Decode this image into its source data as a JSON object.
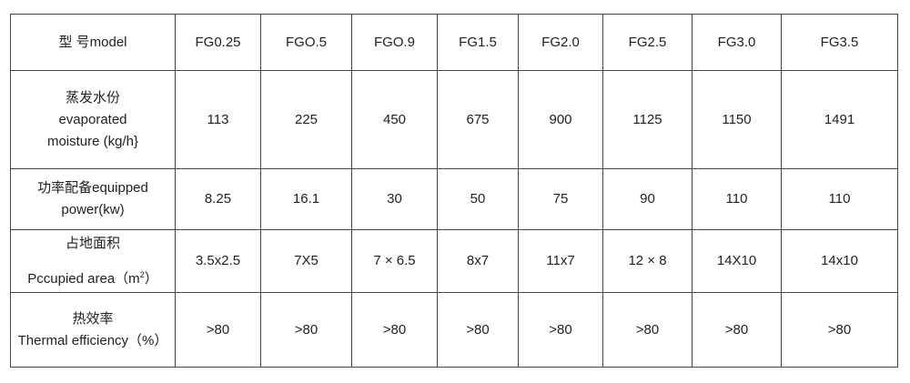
{
  "table": {
    "header": {
      "label": "型  号model",
      "models": [
        "FG0.25",
        "FGO.5",
        "FGO.9",
        "FG1.5",
        "FG2.0",
        "FG2.5",
        "FG3.0",
        "FG3.5"
      ]
    },
    "rows": [
      {
        "label_cn": "蒸发水份",
        "label_en": "evaporated",
        "label_en2": "moisture (kg/h}",
        "values": [
          "113",
          "225",
          "450",
          "675",
          "900",
          "1125",
          "1150",
          "1491"
        ]
      },
      {
        "label_cn": "功率配备equipped",
        "label_en": "power(kw)",
        "values": [
          "8.25",
          "16.1",
          "30",
          "50",
          "75",
          "90",
          "110",
          "110"
        ]
      },
      {
        "label_cn": "占地面积",
        "label_en": "Pccupied area（m",
        "label_sup": "2",
        "label_end": "）",
        "values": [
          "3.5x2.5",
          "7X5",
          "7 × 6.5",
          "8x7",
          "11x7",
          "12 × 8",
          "14X10",
          "14x10"
        ]
      },
      {
        "label_cn": "热效率",
        "label_en": "Thermal efficiency（%）",
        "values": [
          ">80",
          ">80",
          ">80",
          ">80",
          ">80",
          ">80",
          ">80",
          ">80"
        ]
      }
    ]
  }
}
